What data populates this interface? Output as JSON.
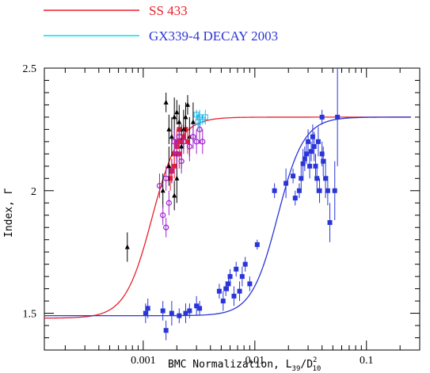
{
  "chart_data": {
    "type": "scatter",
    "xscale": "log",
    "xlim": [
      0.00013,
      0.3
    ],
    "ylim": [
      1.35,
      2.5
    ],
    "xlabel": "BMC Normalization, L",
    "xlabel_sub1": "39",
    "xlabel_mid": "/D",
    "xlabel_sup": "2",
    "xlabel_sub2": "10",
    "ylabel": "Index, Γ",
    "x_ticks": [
      {
        "value": 0.001,
        "label": "0.001"
      },
      {
        "value": 0.01,
        "label": "0.01"
      },
      {
        "value": 0.1,
        "label": "0.1"
      }
    ],
    "y_ticks": [
      {
        "value": 1.5,
        "label": "1.5"
      },
      {
        "value": 2.0,
        "label": "2"
      },
      {
        "value": 2.5,
        "label": "2.5"
      }
    ],
    "legend": [
      {
        "label": "SS 433",
        "color": "#e8202a",
        "text_color": "#e8202a"
      },
      {
        "label": "GX339-4 DECAY 2003",
        "color": "#00e0f0",
        "text_color": "#2a35d8"
      }
    ],
    "curves": [
      {
        "name": "SS 433 fit",
        "color": "#e8202a",
        "low": 1.48,
        "high": 2.3,
        "x0": 0.0012,
        "k": 3.6,
        "x_start": 0.00013,
        "x_end": 0.25
      },
      {
        "name": "GX339-4 fit",
        "color": "#2a35d8",
        "low": 1.49,
        "high": 2.3,
        "x0": 0.016,
        "k": 3.7,
        "x_start": 0.00013,
        "x_end": 0.25
      }
    ],
    "series": [
      {
        "name": "SS 433",
        "color": "#e8202a",
        "marker": "square",
        "points": [
          [
            0.0019,
            2.15,
            0.05
          ],
          [
            0.002,
            2.2,
            0.05
          ],
          [
            0.0021,
            2.25,
            0.05
          ],
          [
            0.0022,
            2.2,
            0.06
          ],
          [
            0.0019,
            2.1,
            0.05
          ],
          [
            0.00175,
            2.05,
            0.05
          ],
          [
            0.0023,
            2.22,
            0.05
          ],
          [
            0.0025,
            2.2,
            0.05
          ],
          [
            0.0024,
            2.25,
            0.04
          ],
          [
            0.002,
            2.18,
            0.05
          ],
          [
            0.0018,
            2.08,
            0.05
          ],
          [
            0.0021,
            2.15,
            0.06
          ]
        ]
      },
      {
        "name": "black",
        "color": "#000000",
        "marker": "triangle",
        "points": [
          [
            0.00072,
            1.77,
            0.06
          ],
          [
            0.0016,
            2.36,
            0.04
          ],
          [
            0.0017,
            2.1,
            0.08
          ],
          [
            0.0018,
            2.22,
            0.08
          ],
          [
            0.0019,
            2.3,
            0.08
          ],
          [
            0.002,
            2.05,
            0.1
          ],
          [
            0.0021,
            2.28,
            0.07
          ],
          [
            0.0022,
            2.18,
            0.09
          ],
          [
            0.0023,
            2.25,
            0.08
          ],
          [
            0.0024,
            2.3,
            0.06
          ],
          [
            0.0026,
            2.22,
            0.08
          ],
          [
            0.0028,
            2.28,
            0.08
          ],
          [
            0.0015,
            2.0,
            0.07
          ],
          [
            0.0017,
            2.25,
            0.06
          ],
          [
            0.002,
            2.32,
            0.05
          ],
          [
            0.0025,
            2.35,
            0.04
          ],
          [
            0.0019,
            1.98,
            0.06
          ]
        ]
      },
      {
        "name": "magenta",
        "color": "#a020d0",
        "marker": "circle",
        "points": [
          [
            0.0014,
            2.02,
            0.05
          ],
          [
            0.0015,
            1.9,
            0.04
          ],
          [
            0.0016,
            1.85,
            0.04
          ],
          [
            0.0017,
            1.95,
            0.05
          ],
          [
            0.0018,
            2.08,
            0.05
          ],
          [
            0.0019,
            2.2,
            0.05
          ],
          [
            0.002,
            2.15,
            0.06
          ],
          [
            0.0021,
            2.22,
            0.05
          ],
          [
            0.0023,
            2.2,
            0.05
          ],
          [
            0.0026,
            2.18,
            0.06
          ],
          [
            0.0028,
            2.22,
            0.05
          ],
          [
            0.003,
            2.2,
            0.05
          ],
          [
            0.0032,
            2.25,
            0.06
          ],
          [
            0.0034,
            2.2,
            0.05
          ],
          [
            0.0016,
            2.05,
            0.05
          ],
          [
            0.0022,
            2.12,
            0.05
          ]
        ]
      },
      {
        "name": "cyan",
        "color": "#20b8e8",
        "marker": "square-open",
        "points": [
          [
            0.003,
            2.31,
            0.02
          ],
          [
            0.0032,
            2.3,
            0.03
          ],
          [
            0.0034,
            2.29,
            0.02
          ],
          [
            0.0036,
            2.3,
            0.03
          ],
          [
            0.0031,
            2.28,
            0.03
          ]
        ]
      },
      {
        "name": "GX339-4 DECAY 2003",
        "color": "#2a35d8",
        "marker": "square",
        "points": [
          [
            0.0011,
            1.52,
            0.04
          ],
          [
            0.00105,
            1.5,
            0.04
          ],
          [
            0.0015,
            1.51,
            0.04
          ],
          [
            0.0016,
            1.43,
            0.04
          ],
          [
            0.0018,
            1.5,
            0.05
          ],
          [
            0.0021,
            1.49,
            0.03
          ],
          [
            0.0024,
            1.5,
            0.04
          ],
          [
            0.0026,
            1.51,
            0.03
          ],
          [
            0.003,
            1.53,
            0.04
          ],
          [
            0.0032,
            1.52,
            0.03
          ],
          [
            0.0048,
            1.59,
            0.03
          ],
          [
            0.0055,
            1.6,
            0.03
          ],
          [
            0.006,
            1.65,
            0.03
          ],
          [
            0.0065,
            1.57,
            0.04
          ],
          [
            0.0068,
            1.68,
            0.03
          ],
          [
            0.0073,
            1.59,
            0.04
          ],
          [
            0.0077,
            1.65,
            0.04
          ],
          [
            0.0082,
            1.7,
            0.03
          ],
          [
            0.009,
            1.62,
            0.03
          ],
          [
            0.0105,
            1.78,
            0.02
          ],
          [
            0.0052,
            1.55,
            0.04
          ],
          [
            0.0058,
            1.62,
            0.03
          ],
          [
            0.015,
            2.0,
            0.03
          ],
          [
            0.019,
            2.03,
            0.06
          ],
          [
            0.022,
            2.06,
            0.03
          ],
          [
            0.023,
            1.97,
            0.03
          ],
          [
            0.025,
            2.0,
            0.03
          ],
          [
            0.026,
            2.05,
            0.05
          ],
          [
            0.027,
            2.11,
            0.06
          ],
          [
            0.028,
            2.13,
            0.05
          ],
          [
            0.029,
            2.15,
            0.04
          ],
          [
            0.03,
            2.2,
            0.05
          ],
          [
            0.031,
            2.1,
            0.05
          ],
          [
            0.032,
            2.16,
            0.04
          ],
          [
            0.033,
            2.22,
            0.05
          ],
          [
            0.034,
            2.18,
            0.06
          ],
          [
            0.035,
            2.1,
            0.05
          ],
          [
            0.036,
            2.05,
            0.06
          ],
          [
            0.037,
            2.2,
            0.06
          ],
          [
            0.038,
            2.0,
            0.05
          ],
          [
            0.04,
            2.15,
            0.05
          ],
          [
            0.041,
            2.12,
            0.06
          ],
          [
            0.043,
            2.05,
            0.08
          ],
          [
            0.045,
            2.0,
            0.06
          ],
          [
            0.04,
            2.3,
            0.03
          ],
          [
            0.055,
            2.3,
            0.2
          ],
          [
            0.052,
            2.0,
            0.12
          ],
          [
            0.047,
            1.87,
            0.08
          ]
        ]
      }
    ]
  }
}
